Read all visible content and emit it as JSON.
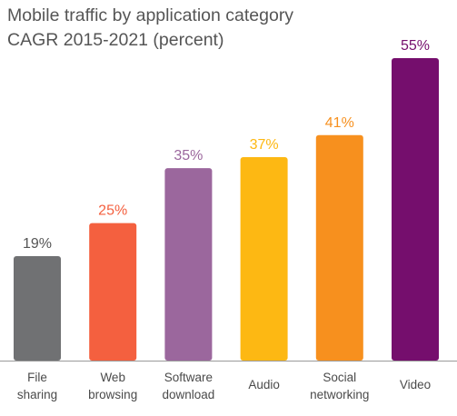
{
  "chart_data": {
    "type": "bar",
    "title": "Mobile traffic by application category",
    "subtitle": "CAGR 2015-2021 (percent)",
    "categories": [
      [
        "File",
        "sharing"
      ],
      [
        "Web",
        "browsing"
      ],
      [
        "Software",
        "download"
      ],
      [
        "Audio"
      ],
      [
        "Social",
        "networking"
      ],
      [
        "Video"
      ]
    ],
    "values": [
      19,
      25,
      35,
      37,
      41,
      55
    ],
    "value_labels": [
      "19%",
      "25%",
      "35%",
      "37%",
      "41%",
      "55%"
    ],
    "colors": [
      "#707173",
      "#f4603f",
      "#9b679d",
      "#fdb813",
      "#f7901e",
      "#750e6d"
    ],
    "label_colors": [
      "#555555",
      "#f4603f",
      "#9b679d",
      "#fdb813",
      "#f7901e",
      "#750e6d"
    ],
    "ylim": [
      0,
      55
    ],
    "grid": false,
    "legend": "none"
  }
}
